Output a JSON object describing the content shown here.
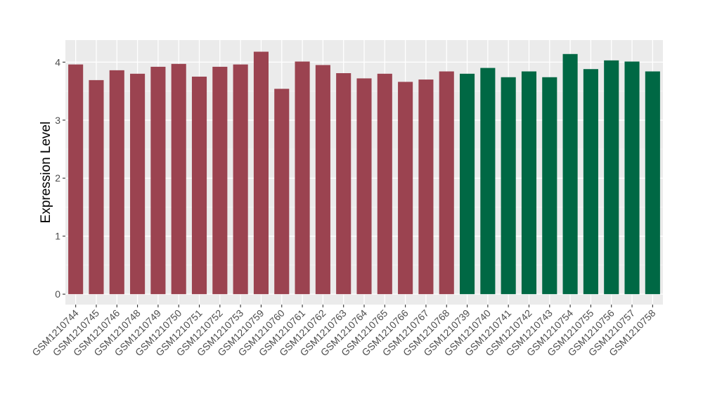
{
  "chart_data": {
    "type": "bar",
    "title": "",
    "xlabel": "",
    "ylabel": "Expression Level",
    "ylim": [
      -0.18,
      4.38
    ],
    "yticks": [
      0,
      1,
      2,
      3,
      4
    ],
    "grid": true,
    "legend": "none",
    "colors": {
      "group1": "#9b4350",
      "group2": "#006844",
      "panel_background": "#ebebeb",
      "grid_major": "#ffffff",
      "grid_minor": "#f5f5f5"
    },
    "categories": [
      "GSM1210744",
      "GSM1210745",
      "GSM1210746",
      "GSM1210748",
      "GSM1210749",
      "GSM1210750",
      "GSM1210751",
      "GSM1210752",
      "GSM1210753",
      "GSM1210759",
      "GSM1210760",
      "GSM1210761",
      "GSM1210762",
      "GSM1210763",
      "GSM1210764",
      "GSM1210765",
      "GSM1210766",
      "GSM1210767",
      "GSM1210768",
      "GSM1210739",
      "GSM1210740",
      "GSM1210741",
      "GSM1210742",
      "GSM1210743",
      "GSM1210754",
      "GSM1210755",
      "GSM1210756",
      "GSM1210757",
      "GSM1210758"
    ],
    "values": [
      3.96,
      3.69,
      3.86,
      3.8,
      3.92,
      3.97,
      3.75,
      3.92,
      3.96,
      4.18,
      3.54,
      4.01,
      3.95,
      3.81,
      3.72,
      3.8,
      3.66,
      3.7,
      3.84,
      3.8,
      3.9,
      3.74,
      3.84,
      3.74,
      4.14,
      3.88,
      4.03,
      4.01,
      3.84
    ],
    "groups": [
      1,
      1,
      1,
      1,
      1,
      1,
      1,
      1,
      1,
      1,
      1,
      1,
      1,
      1,
      1,
      1,
      1,
      1,
      1,
      2,
      2,
      2,
      2,
      2,
      2,
      2,
      2,
      2,
      2
    ]
  }
}
